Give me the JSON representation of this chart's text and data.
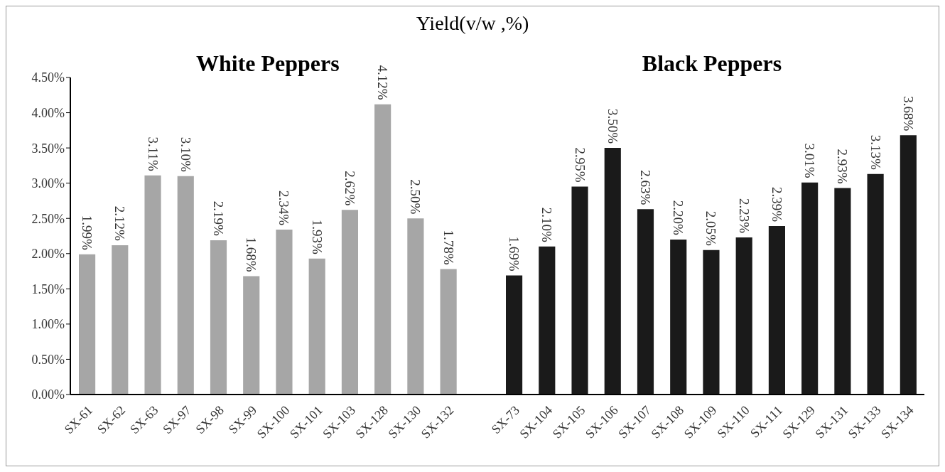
{
  "chart_data": {
    "type": "bar",
    "title": "Yield(v/w ,%)",
    "categories": [
      "SX-61",
      "SX-62",
      "SX-63",
      "SX-97",
      "SX-98",
      "SX-99",
      "SX-100",
      "SX-101",
      "SX-103",
      "SX-128",
      "SX-130",
      "SX-132",
      null,
      "SX-73",
      "SX-104",
      "SX-105",
      "SX-106",
      "SX-107",
      "SX-108",
      "SX-109",
      "SX-110",
      "SX-111",
      "SX-129",
      "SX-131",
      "SX-133",
      "SX-134"
    ],
    "series": [
      {
        "color": "#a6a6a6",
        "values": [
          1.99,
          2.12,
          3.11,
          3.1,
          2.19,
          1.68,
          2.34,
          1.93,
          2.62,
          4.12,
          2.5,
          1.78,
          null,
          null,
          null,
          null,
          null,
          null,
          null,
          null,
          null,
          null,
          null,
          null,
          null,
          null
        ],
        "value_labels": [
          "1.99%",
          "2.12%",
          "3.11%",
          "3.10%",
          "2.19%",
          "1.68%",
          "2.34%",
          "1.93%",
          "2.62%",
          "4.12%",
          "2.50%",
          "1.78%",
          null,
          null,
          null,
          null,
          null,
          null,
          null,
          null,
          null,
          null,
          null,
          null,
          null,
          null
        ]
      },
      {
        "color": "#1a1a1a",
        "values": [
          null,
          null,
          null,
          null,
          null,
          null,
          null,
          null,
          null,
          null,
          null,
          null,
          null,
          1.69,
          2.1,
          2.95,
          3.5,
          2.63,
          2.2,
          2.05,
          2.23,
          2.39,
          3.01,
          2.93,
          3.13,
          3.68
        ],
        "value_labels": [
          null,
          null,
          null,
          null,
          null,
          null,
          null,
          null,
          null,
          null,
          null,
          null,
          null,
          "1.69%",
          "2.10%",
          "2.95%",
          "3.50%",
          "2.63%",
          "2.20%",
          "2.05%",
          "2.23%",
          "2.39%",
          "3.01%",
          "2.93%",
          "3.13%",
          "3.68%"
        ]
      }
    ],
    "ylim": [
      0,
      4.5
    ],
    "yticks": [
      {
        "value": 0,
        "label": "0.00%"
      },
      {
        "value": 0.5,
        "label": "0.50%"
      },
      {
        "value": 1,
        "label": "1.00%"
      },
      {
        "value": 1.5,
        "label": "1.50%"
      },
      {
        "value": 2,
        "label": "2.00%"
      },
      {
        "value": 2.5,
        "label": "2.50%"
      },
      {
        "value": 3,
        "label": "3.00%"
      },
      {
        "value": 3.5,
        "label": "3.50%"
      },
      {
        "value": 4,
        "label": "4.00%"
      },
      {
        "value": 4.5,
        "label": "4.50%"
      }
    ],
    "annotations": [
      "White Peppers",
      "Black Peppers"
    ],
    "grid": false,
    "legend": false
  }
}
